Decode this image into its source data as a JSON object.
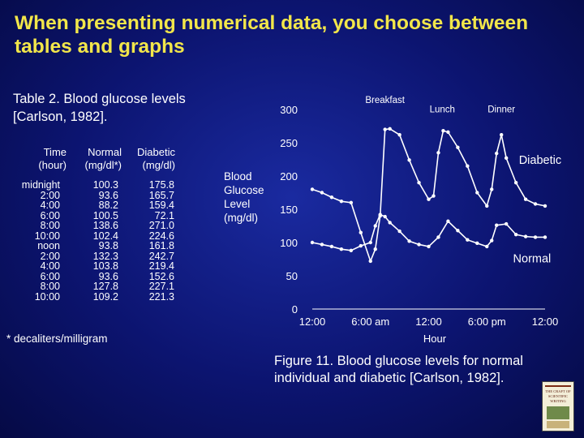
{
  "slide": {
    "title": "When presenting numerical data, you choose between tables and graphs",
    "footnote": "* decaliters/milligram"
  },
  "table": {
    "caption": "Table 2. Blood glucose levels [Carlson, 1982].",
    "headers": [
      {
        "line1": "Time",
        "line2": "(hour)"
      },
      {
        "line1": "Normal",
        "line2": "(mg/dl*)"
      },
      {
        "line1": "Diabetic",
        "line2": "(mg/dl)"
      }
    ],
    "rows": [
      [
        "midnight",
        "100.3",
        "175.8"
      ],
      [
        "2:00",
        "93.6",
        "165.7"
      ],
      [
        "4:00",
        "88.2",
        "159.4"
      ],
      [
        "6:00",
        "100.5",
        "72.1"
      ],
      [
        "8:00",
        "138.6",
        "271.0"
      ],
      [
        "10:00",
        "102.4",
        "224.6"
      ],
      [
        "noon",
        "93.8",
        "161.8"
      ],
      [
        "2:00",
        "132.3",
        "242.7"
      ],
      [
        "4:00",
        "103.8",
        "219.4"
      ],
      [
        "6:00",
        "93.6",
        "152.6"
      ],
      [
        "8:00",
        "127.8",
        "227.1"
      ],
      [
        "10:00",
        "109.2",
        "221.3"
      ]
    ]
  },
  "figure": {
    "caption": "Figure 11. Blood glucose levels for normal individual and diabetic [Carlson, 1982].",
    "book_lines": [
      "THE CRAFT OF",
      "SCIENTIFIC",
      "WRITING"
    ]
  },
  "chart_data": {
    "type": "line",
    "xlabel": "Hour",
    "ylabel": [
      "Blood",
      "Glucose",
      "Level",
      "(mg/dl)"
    ],
    "xlim": [
      0,
      24
    ],
    "ylim": [
      0,
      300
    ],
    "xticks": [
      {
        "x": 0,
        "label": "12:00"
      },
      {
        "x": 6,
        "label": "6:00 am"
      },
      {
        "x": 12,
        "label": "12:00"
      },
      {
        "x": 18,
        "label": "6:00 pm"
      },
      {
        "x": 24,
        "label": "12:00"
      }
    ],
    "yticks": [
      0,
      50,
      100,
      150,
      200,
      250,
      300
    ],
    "grid": false,
    "annotations": [
      {
        "text": "Breakfast",
        "x": 7.5,
        "y": 310
      },
      {
        "text": "Lunch",
        "x": 13.4,
        "y": 296
      },
      {
        "text": "Dinner",
        "x": 19.5,
        "y": 296
      }
    ],
    "series": [
      {
        "name": "Diabetic",
        "x": [
          0,
          1,
          2,
          3,
          4,
          5,
          6,
          6.5,
          7,
          7.5,
          8,
          9,
          10,
          11,
          12,
          12.5,
          13,
          13.5,
          14,
          15,
          16,
          17,
          18,
          18.5,
          19,
          19.5,
          20,
          21,
          22,
          23,
          24
        ],
        "values": [
          180,
          175,
          168,
          162,
          160,
          115,
          72,
          90,
          140,
          270,
          271,
          262,
          224,
          190,
          165,
          170,
          235,
          268,
          266,
          243,
          215,
          175,
          155,
          180,
          234,
          262,
          227,
          190,
          165,
          158,
          155
        ]
      },
      {
        "name": "Normal",
        "x": [
          0,
          1,
          2,
          3,
          4,
          5,
          6,
          6.5,
          7,
          7.5,
          8,
          9,
          10,
          11,
          12,
          13,
          14,
          15,
          16,
          17,
          18,
          18.5,
          19,
          20,
          21,
          22,
          23,
          24
        ],
        "values": [
          100,
          97,
          94,
          90,
          88,
          95,
          100,
          125,
          142,
          139,
          130,
          117,
          102,
          97,
          94,
          108,
          132,
          118,
          104,
          99,
          94,
          103,
          126,
          128,
          112,
          109,
          108,
          108
        ]
      }
    ],
    "series_labels": [
      {
        "series": "Diabetic",
        "text": "Diabetic",
        "x": 21.3,
        "y": 218
      },
      {
        "series": "Normal",
        "text": "Normal",
        "x": 20.7,
        "y": 70
      }
    ]
  }
}
